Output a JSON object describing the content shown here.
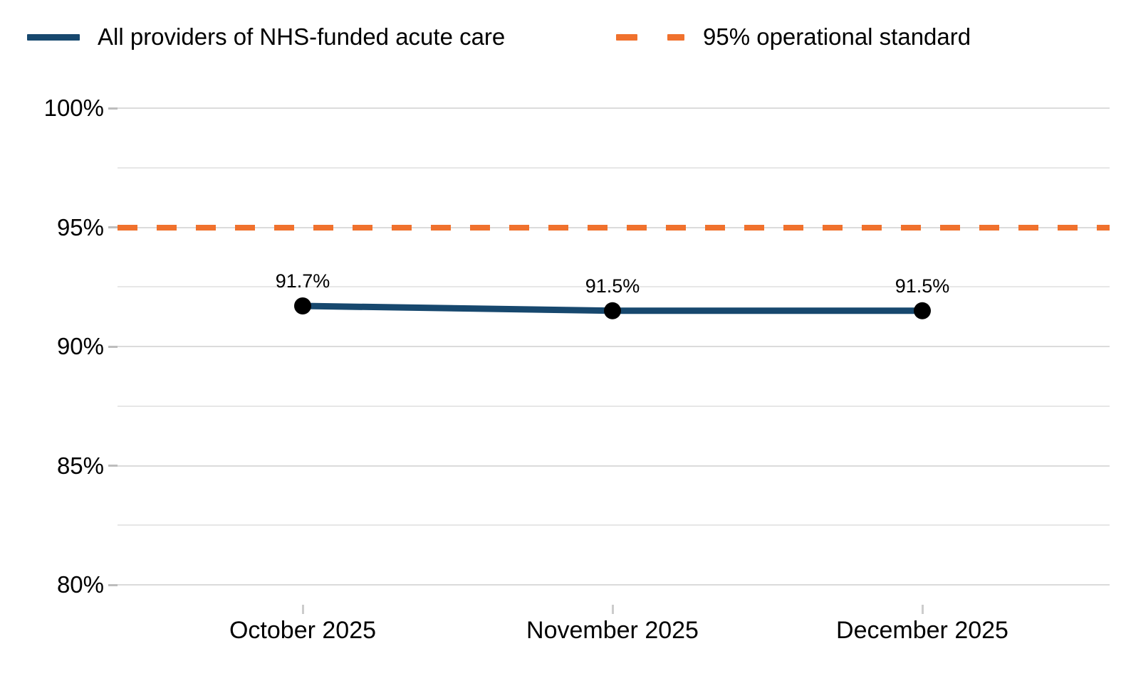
{
  "legend": {
    "items": [
      {
        "label": "All providers of NHS-funded acute care",
        "color": "#17486E",
        "style": "solid"
      },
      {
        "label": "95% operational standard",
        "color": "#F0712D",
        "style": "dashed"
      }
    ]
  },
  "chart_data": {
    "type": "line",
    "title": "",
    "xlabel": "",
    "ylabel": "",
    "categories": [
      "October 2025",
      "November 2025",
      "December 2025"
    ],
    "series": [
      {
        "name": "All providers of NHS-funded acute care",
        "values": [
          91.7,
          91.5,
          91.5
        ],
        "data_labels": [
          "91.7%",
          "91.5%",
          "91.5%"
        ],
        "line_color": "#17486E",
        "marker_color": "#000000"
      },
      {
        "name": "95% operational standard",
        "kind": "reference-line",
        "value": 95,
        "color": "#F0712D",
        "dashed": true
      }
    ],
    "ylim": [
      80,
      100
    ],
    "y_ticks": [
      {
        "value": 100,
        "label": "100%"
      },
      {
        "value": 95,
        "label": "95%"
      },
      {
        "value": 90,
        "label": "90%"
      },
      {
        "value": 85,
        "label": "85%"
      },
      {
        "value": 80,
        "label": "80%"
      }
    ],
    "y_minor_gridlines": [
      97.5,
      92.5,
      87.5,
      82.5
    ],
    "grid": "horizontal",
    "legend_position": "top"
  },
  "colors": {
    "series_line": "#17486E",
    "marker": "#000000",
    "standard_line": "#F0712D",
    "gridline_major": "#DBDBDB",
    "gridline_minor": "#E7E7E7",
    "axis_tick": "#BDBDBD",
    "x_tick": "#CCCCCC",
    "text": "#000000",
    "background": "#FFFFFF"
  }
}
